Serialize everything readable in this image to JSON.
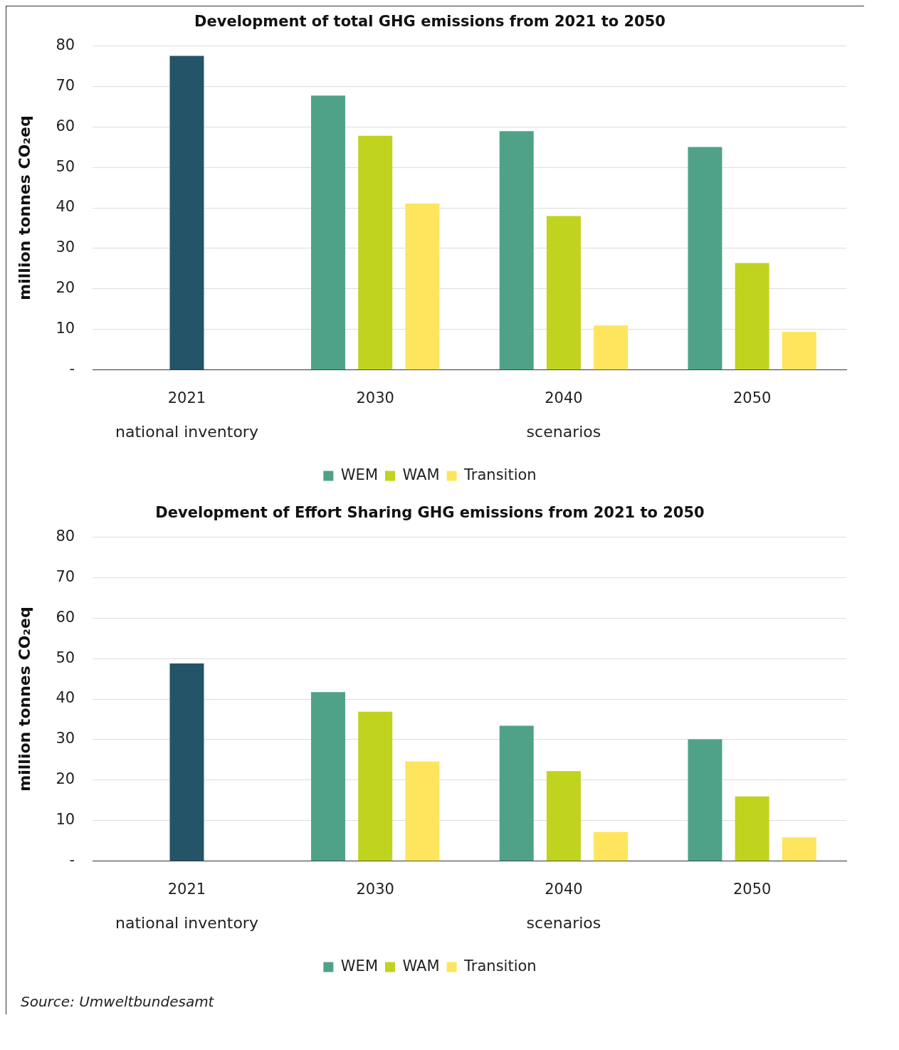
{
  "chart_data": [
    {
      "type": "bar",
      "title": "Development of total GHG emissions from 2021 to 2050",
      "ylabel": "million tonnes CO₂eq",
      "categories": [
        "2021",
        "2030",
        "2040",
        "2050"
      ],
      "series": [
        {
          "color": "#245468",
          "values": [
            77.5,
            null,
            null,
            null
          ]
        },
        {
          "name": "WEM",
          "color": "#4fa287",
          "values": [
            null,
            67.7,
            58.9,
            55.0
          ]
        },
        {
          "name": "WAM",
          "color": "#c0d31f",
          "values": [
            null,
            57.8,
            38.0,
            26.4
          ]
        },
        {
          "name": "Transition",
          "color": "#fee55d",
          "values": [
            null,
            41.1,
            11.0,
            9.4
          ]
        }
      ],
      "ylim": [
        0,
        80
      ],
      "yticks": [
        {
          "value": 0,
          "label": "-"
        },
        10,
        20,
        30,
        40,
        50,
        60,
        70,
        80
      ],
      "grid": "y",
      "legend": "bottom",
      "annotations": [
        "national inventory",
        "scenarios"
      ]
    },
    {
      "type": "bar",
      "title": "Development of Effort Sharing GHG emissions from 2021 to 2050",
      "ylabel": "million tonnes CO₂eq",
      "categories": [
        "2021",
        "2030",
        "2040",
        "2050"
      ],
      "series": [
        {
          "color": "#245468",
          "values": [
            48.8,
            null,
            null,
            null
          ]
        },
        {
          "name": "WEM",
          "color": "#4fa287",
          "values": [
            null,
            41.7,
            33.4,
            30.1
          ]
        },
        {
          "name": "WAM",
          "color": "#c0d31f",
          "values": [
            null,
            36.9,
            22.2,
            16.0
          ]
        },
        {
          "name": "Transition",
          "color": "#fee55d",
          "values": [
            null,
            24.6,
            7.2,
            5.9
          ]
        }
      ],
      "ylim": [
        0,
        80
      ],
      "yticks": [
        {
          "value": 0,
          "label": "-"
        },
        10,
        20,
        30,
        40,
        50,
        60,
        70,
        80
      ],
      "grid": "y",
      "legend": "bottom",
      "annotations": [
        "national inventory",
        "scenarios",
        "Source: Umweltbundesamt"
      ]
    }
  ]
}
